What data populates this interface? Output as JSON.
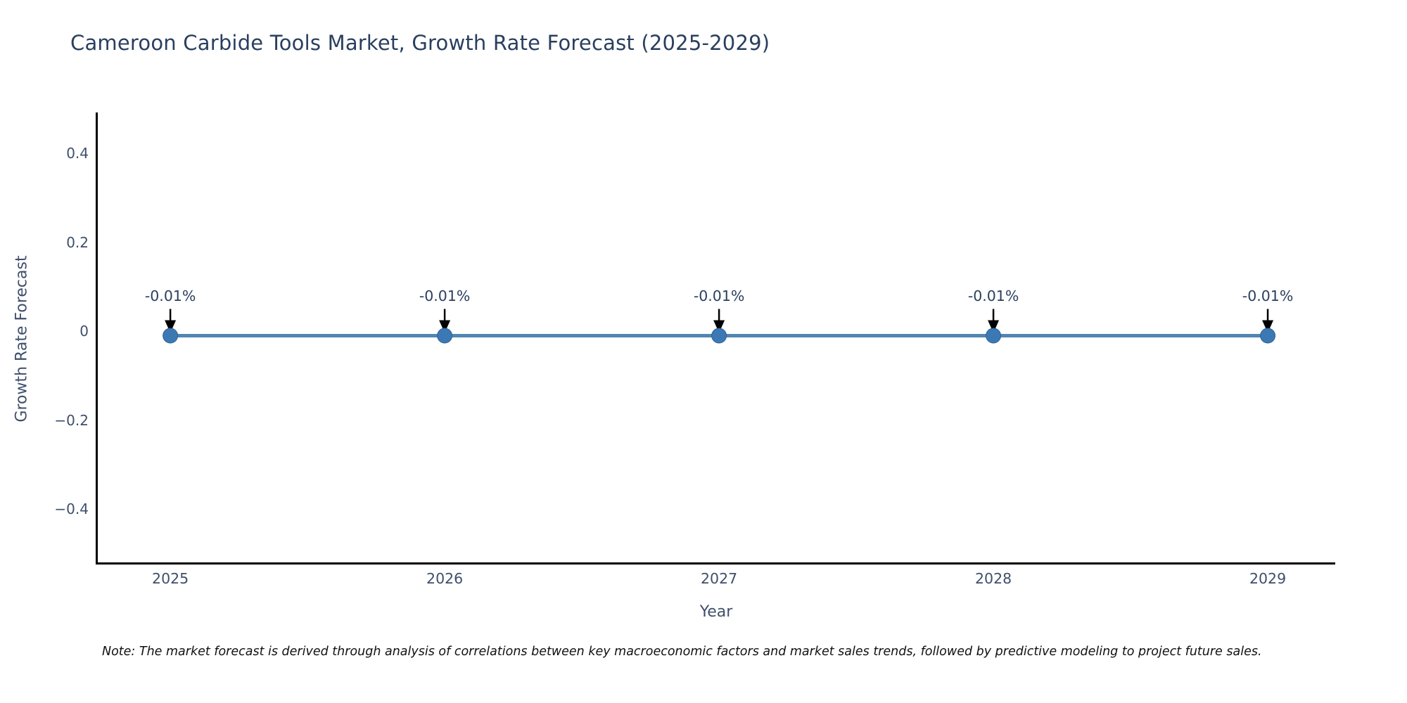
{
  "title": "Cameroon Carbide Tools Market, Growth Rate Forecast (2025-2029)",
  "x_axis": {
    "label": "Year",
    "tick_labels": [
      "2025",
      "2026",
      "2027",
      "2028",
      "2029"
    ]
  },
  "y_axis": {
    "label": "Growth Rate Forecast",
    "tick_labels": [
      "0.4",
      "0.2",
      "0",
      "−0.2",
      "−0.4"
    ]
  },
  "note": "Note: The market forecast is derived through analysis of correlations between key macroeconomic factors and market sales trends, followed by predictive modeling to project future sales.",
  "chart_data": {
    "type": "line",
    "title": "Cameroon Carbide Tools Market, Growth Rate Forecast (2025-2029)",
    "xlabel": "Year",
    "ylabel": "Growth Rate Forecast",
    "x": [
      2025,
      2026,
      2027,
      2028,
      2029
    ],
    "values": [
      -0.01,
      -0.01,
      -0.01,
      -0.01,
      -0.01
    ],
    "point_labels": [
      "-0.01%",
      "-0.01%",
      "-0.01%",
      "-0.01%",
      "-0.01%"
    ],
    "y_ticks": [
      0.4,
      0.2,
      0,
      -0.2,
      -0.4
    ],
    "xlim": [
      2024.733,
      2029.246
    ],
    "ylim": [
      -0.52,
      0.492
    ],
    "grid": false,
    "legend": "none",
    "annotation_arrows": true,
    "colors": {
      "line": "#5185b2",
      "marker": "#3c78b4",
      "marker_edge": "#2f6398",
      "arrow": "#000000",
      "annotation_text": "#2a3f5f",
      "axis_line": "#000000",
      "tick_text": "#3f4f6b",
      "axis_title_text": "#3f4f6b",
      "title_text": "#2a3f5f",
      "note_text": "#111111"
    }
  }
}
